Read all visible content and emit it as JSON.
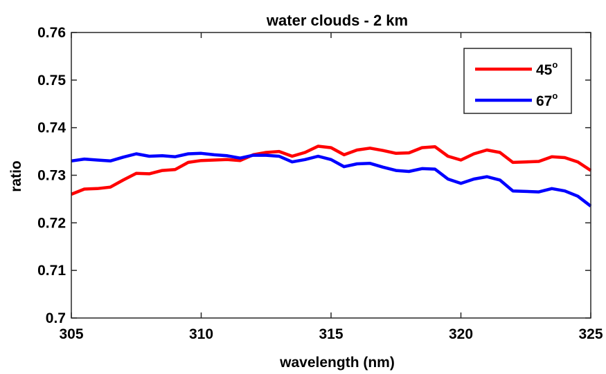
{
  "chart_data": {
    "type": "line",
    "title": "water clouds - 2 km",
    "xlabel": "wavelength (nm)",
    "ylabel": "ratio",
    "xlim": [
      305,
      325
    ],
    "ylim": [
      0.7,
      0.76
    ],
    "xticks": [
      305,
      310,
      315,
      320,
      325
    ],
    "yticks": [
      0.7,
      0.71,
      0.72,
      0.73,
      0.74,
      0.75,
      0.76
    ],
    "ytick_labels": [
      "0.7",
      "0.71",
      "0.72",
      "0.73",
      "0.74",
      "0.75",
      "0.76"
    ],
    "grid": false,
    "legend_position": "top-right",
    "series": [
      {
        "name": "45",
        "name_superscript": "o",
        "color": "#ff0000",
        "x": [
          305.0,
          305.5,
          306.0,
          306.5,
          307.0,
          307.5,
          308.0,
          308.5,
          309.0,
          309.5,
          310.0,
          310.5,
          311.0,
          311.5,
          312.0,
          312.5,
          313.0,
          313.5,
          314.0,
          314.5,
          315.0,
          315.5,
          316.0,
          316.5,
          317.0,
          317.5,
          318.0,
          318.5,
          319.0,
          319.5,
          320.0,
          320.5,
          321.0,
          321.5,
          322.0,
          322.5,
          323.0,
          323.5,
          324.0,
          324.5,
          325.0
        ],
        "y": [
          0.726,
          0.7271,
          0.7272,
          0.7275,
          0.729,
          0.7304,
          0.7303,
          0.731,
          0.7312,
          0.7327,
          0.7331,
          0.7332,
          0.7333,
          0.7331,
          0.7343,
          0.7348,
          0.735,
          0.734,
          0.7348,
          0.7361,
          0.7358,
          0.7343,
          0.7353,
          0.7357,
          0.7352,
          0.7346,
          0.7347,
          0.7358,
          0.736,
          0.734,
          0.7332,
          0.7345,
          0.7353,
          0.7348,
          0.7327,
          0.7328,
          0.7329,
          0.7339,
          0.7337,
          0.7328,
          0.731
        ]
      },
      {
        "name": "67",
        "name_superscript": "o",
        "color": "#0000ff",
        "x": [
          305.0,
          305.5,
          306.0,
          306.5,
          307.0,
          307.5,
          308.0,
          308.5,
          309.0,
          309.5,
          310.0,
          310.5,
          311.0,
          311.5,
          312.0,
          312.5,
          313.0,
          313.5,
          314.0,
          314.5,
          315.0,
          315.5,
          316.0,
          316.5,
          317.0,
          317.5,
          318.0,
          318.5,
          319.0,
          319.5,
          320.0,
          320.5,
          321.0,
          321.5,
          322.0,
          322.5,
          323.0,
          323.5,
          324.0,
          324.5,
          325.0
        ],
        "y": [
          0.733,
          0.7334,
          0.7332,
          0.733,
          0.7338,
          0.7345,
          0.734,
          0.7341,
          0.7339,
          0.7345,
          0.7346,
          0.7343,
          0.7341,
          0.7336,
          0.7342,
          0.7342,
          0.734,
          0.7328,
          0.7333,
          0.734,
          0.7333,
          0.7318,
          0.7324,
          0.7325,
          0.7317,
          0.731,
          0.7308,
          0.7314,
          0.7313,
          0.7292,
          0.7283,
          0.7292,
          0.7297,
          0.729,
          0.7267,
          0.7266,
          0.7265,
          0.7272,
          0.7267,
          0.7256,
          0.7235
        ]
      }
    ]
  }
}
